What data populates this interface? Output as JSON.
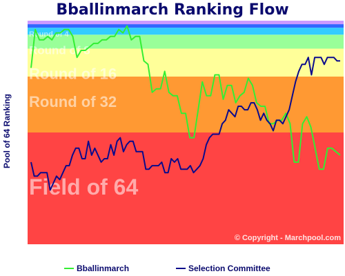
{
  "chart_data": {
    "type": "line",
    "title": "Bballinmarch Ranking Flow",
    "ylabel": "Pool of 64 Ranking",
    "ylim": [
      64,
      1
    ],
    "y_inverted": true,
    "bands": [
      {
        "label": "Field of 64",
        "from": 33,
        "to": 64,
        "color": "#ff4444"
      },
      {
        "label": "Round of 32",
        "from": 17,
        "to": 32,
        "color": "#ff9933"
      },
      {
        "label": "Round of 16",
        "from": 9,
        "to": 16,
        "color": "#ffff99"
      },
      {
        "label": "Round of 8",
        "from": 5,
        "to": 8,
        "color": "#99ff99"
      },
      {
        "label": "Round of 4",
        "from": 3,
        "to": 4,
        "color": "#33ccff"
      },
      {
        "label": "",
        "from": 2,
        "to": 2,
        "color": "#3366ff"
      },
      {
        "label": "",
        "from": 1,
        "to": 1,
        "color": "#cc99ff"
      }
    ],
    "series": [
      {
        "name": "Bballinmarch",
        "color": "#33ee33",
        "values": [
          14,
          3,
          6,
          6,
          5,
          6,
          4,
          4,
          3,
          3,
          5,
          11,
          9,
          9,
          8,
          7,
          7,
          6,
          6,
          5,
          5,
          3,
          4,
          2,
          6,
          5,
          5,
          12,
          13,
          21,
          20,
          20,
          15,
          21,
          22,
          22,
          27,
          27,
          34,
          34,
          26,
          18,
          22,
          22,
          16,
          16,
          23,
          19,
          19,
          24,
          22,
          21,
          17,
          19,
          24,
          25,
          25,
          30,
          30,
          29,
          29,
          27,
          30,
          41,
          41,
          30,
          28,
          31,
          37,
          43,
          43,
          37,
          37,
          38,
          39
        ]
      },
      {
        "name": "Selection Committee",
        "color": "#0a0a8c",
        "values": [
          41,
          45,
          45,
          44,
          44,
          44,
          49,
          47,
          45,
          46,
          44,
          42,
          42,
          39,
          37,
          37,
          40,
          40,
          35,
          39,
          37,
          39,
          41,
          40,
          40,
          36,
          39,
          35,
          34,
          38,
          36,
          35,
          35,
          38,
          38,
          38,
          43,
          43,
          42,
          42,
          42,
          41,
          44,
          44,
          40,
          41,
          40,
          43,
          43,
          43,
          42,
          44,
          43,
          42,
          40,
          36,
          34,
          33,
          33,
          33,
          30,
          29,
          26,
          27,
          28,
          25,
          25,
          26,
          26,
          24,
          24,
          26,
          29,
          27,
          29,
          30,
          32,
          29,
          29,
          30,
          28,
          26,
          22,
          18,
          15,
          13,
          13,
          11,
          16,
          11,
          11,
          11,
          13,
          11,
          11,
          11,
          12,
          12
        ]
      }
    ],
    "legend_position": "bottom",
    "grid": false,
    "annotations": [
      "© Copyright - Marchpool.com"
    ]
  }
}
